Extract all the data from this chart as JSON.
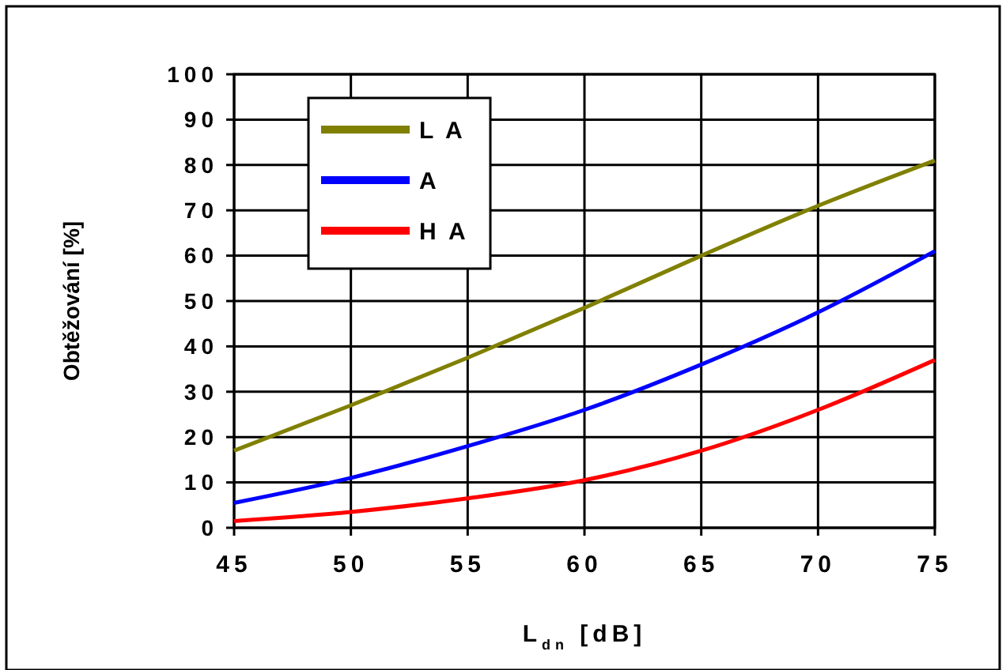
{
  "chart_data": {
    "type": "line",
    "xlabel": "L$_{dn}$ [dB]",
    "ylabel": "Obtěžování [%]",
    "x": [
      45,
      50,
      55,
      60,
      65,
      70,
      75
    ],
    "series": [
      {
        "name": "L A",
        "color": "#808000",
        "values": [
          17,
          27,
          37.5,
          48.5,
          60,
          71,
          81
        ]
      },
      {
        "name": "A",
        "color": "#0000ff",
        "values": [
          5.5,
          11,
          18,
          26,
          36,
          47.5,
          61
        ]
      },
      {
        "name": "H A",
        "color": "#ff0000",
        "values": [
          1.5,
          3.5,
          6.5,
          10.5,
          17,
          26,
          37
        ]
      }
    ],
    "xlim": [
      45,
      75
    ],
    "xticks": [
      45,
      50,
      55,
      60,
      65,
      70,
      75
    ],
    "ylim": [
      0,
      100
    ],
    "yticks": [
      0,
      10,
      20,
      30,
      40,
      50,
      60,
      70,
      80,
      90,
      100
    ],
    "grid": true,
    "legend": "top left",
    "marker": "none",
    "line_style": "solid"
  }
}
